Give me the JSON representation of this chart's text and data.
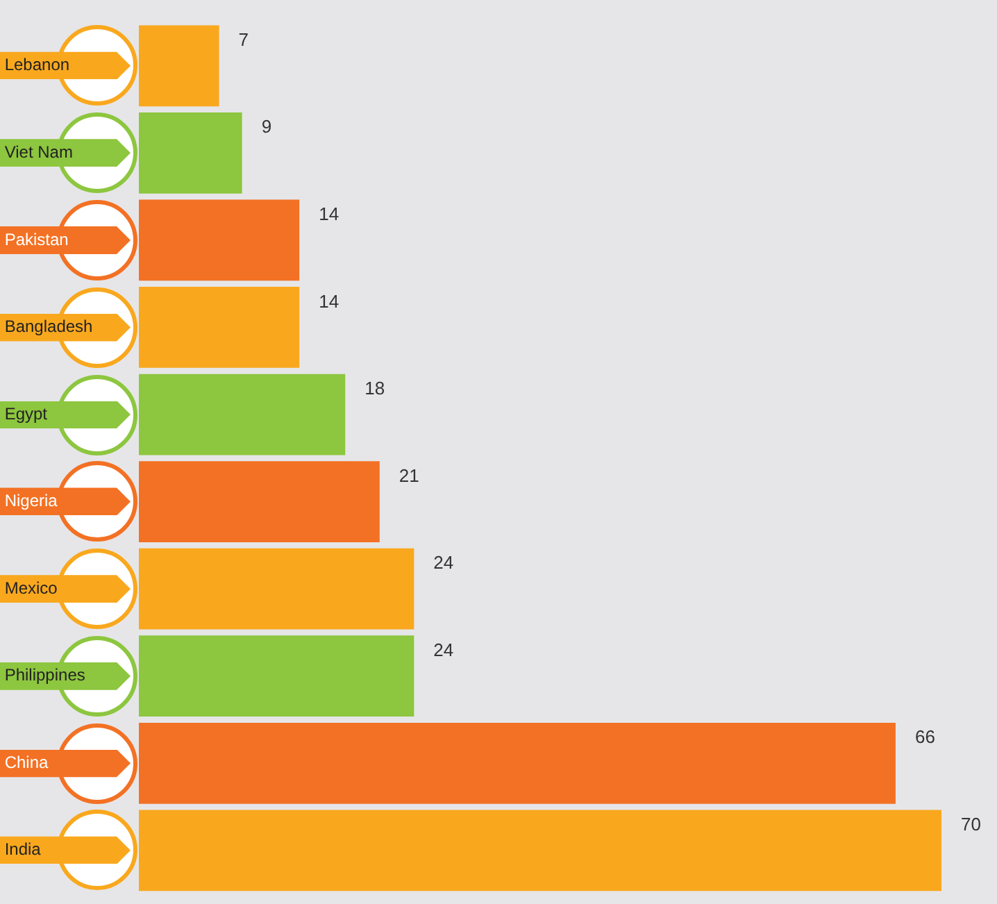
{
  "chart_data": {
    "type": "bar",
    "orientation": "horizontal",
    "categories": [
      "Lebanon",
      "Viet Nam",
      "Pakistan",
      "Bangladesh",
      "Egypt",
      "Nigeria",
      "Mexico",
      "Philippines",
      "China",
      "India"
    ],
    "values": [
      7,
      9,
      14,
      14,
      18,
      21,
      24,
      24,
      66,
      70
    ],
    "colors": [
      "#f9a81e",
      "#8dc63f",
      "#f37124",
      "#f9a81e",
      "#8dc63f",
      "#f37124",
      "#f9a81e",
      "#8dc63f",
      "#f37124",
      "#f9a81e"
    ],
    "data_labels": true,
    "legend": false
  }
}
